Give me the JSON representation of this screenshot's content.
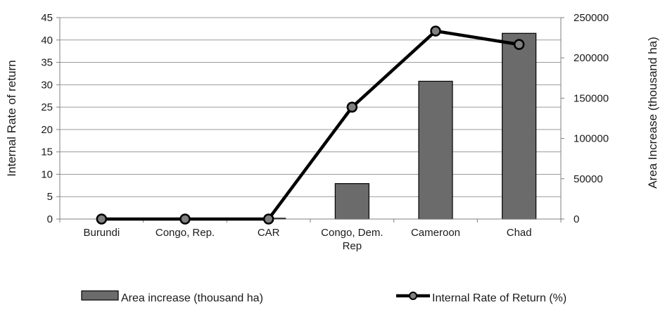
{
  "chart_data": {
    "type": "bar+line",
    "categories": [
      "Burundi",
      "Congo, Rep.",
      "CAR",
      "Congo, Dem. Rep",
      "Cameroon",
      "Chad"
    ],
    "category_labels": [
      [
        "Burundi"
      ],
      [
        "Congo, Rep."
      ],
      [
        "CAR"
      ],
      [
        "Congo, Dem.",
        "Rep"
      ],
      [
        "Cameroon"
      ],
      [
        "Chad"
      ]
    ],
    "series": [
      {
        "name": "Area increase (thousand ha)",
        "kind": "bar",
        "axis": "right",
        "color": "#6b6b6b",
        "values": [
          0,
          0,
          1000,
          44000,
          171000,
          230500
        ]
      },
      {
        "name": "Internal Rate of Return (%)",
        "kind": "line",
        "axis": "left",
        "color": "#000000",
        "marker_color": "#808080",
        "values": [
          0,
          0,
          0,
          25,
          42,
          39
        ]
      }
    ],
    "ylabel_left": "Internal Rate of return",
    "ylabel_right": "Area Increase (thousand ha)",
    "ylim_left": [
      0,
      45
    ],
    "yticks_left": [
      0,
      5,
      10,
      15,
      20,
      25,
      30,
      35,
      40,
      45
    ],
    "ylim_right": [
      0,
      250000
    ],
    "yticks_right": [
      0,
      50000,
      100000,
      150000,
      200000,
      250000
    ],
    "grid": true,
    "legend": "bottom"
  }
}
